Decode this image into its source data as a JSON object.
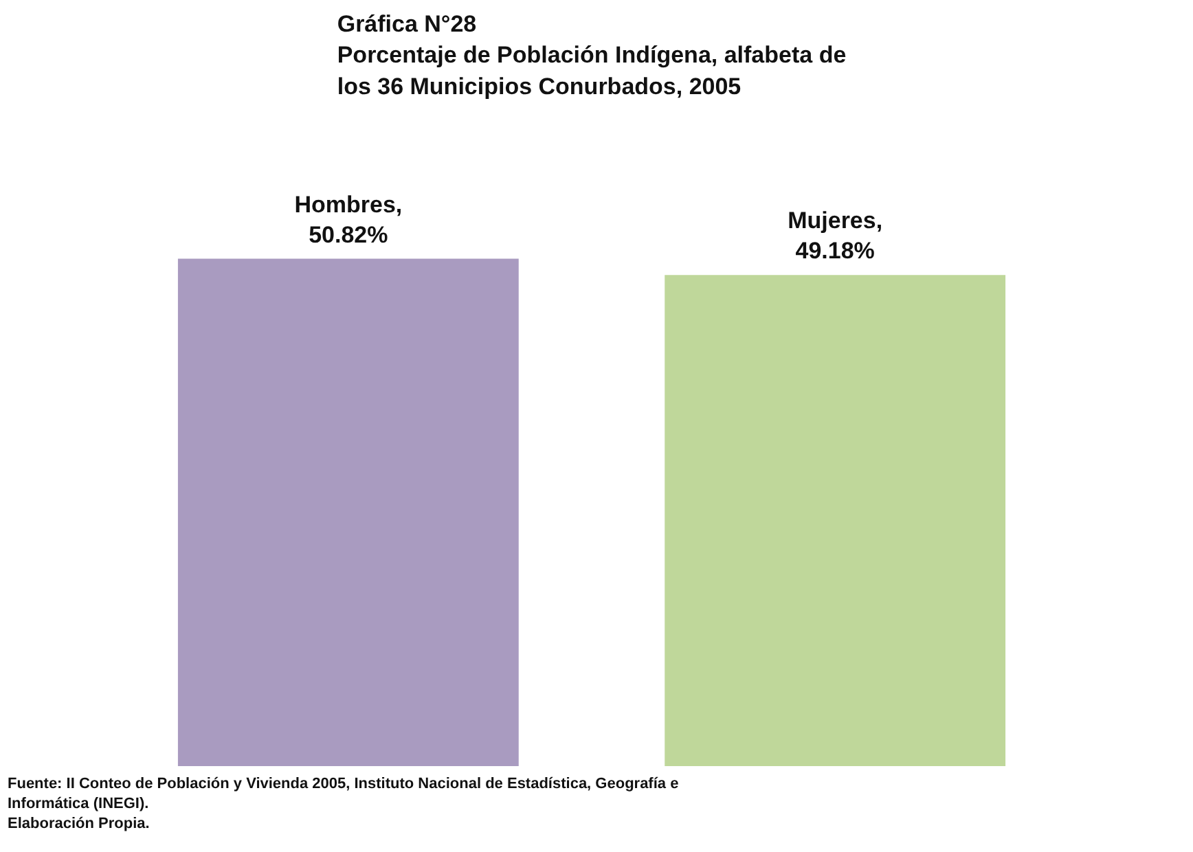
{
  "chart_data": {
    "type": "bar",
    "title": "Gráfica N°28\nPorcentaje de Población Indígena, alfabeta de\nlos 36 Municipios Conurbados, 2005",
    "categories": [
      null,
      null
    ],
    "values": [
      50.82,
      49.18
    ],
    "colors": [
      "#a99bc0",
      "#bfd79a"
    ],
    "value_labels": [
      "Hombres,\n50.82%",
      "Mujeres,\n49.18%"
    ],
    "annotations": [
      "Fuente: II Conteo de Población y Vivienda 2005, Instituto Nacional de Estadística, Geografía e\nInformática (INEGI).\nElaboración Propia."
    ],
    "grid": false
  }
}
